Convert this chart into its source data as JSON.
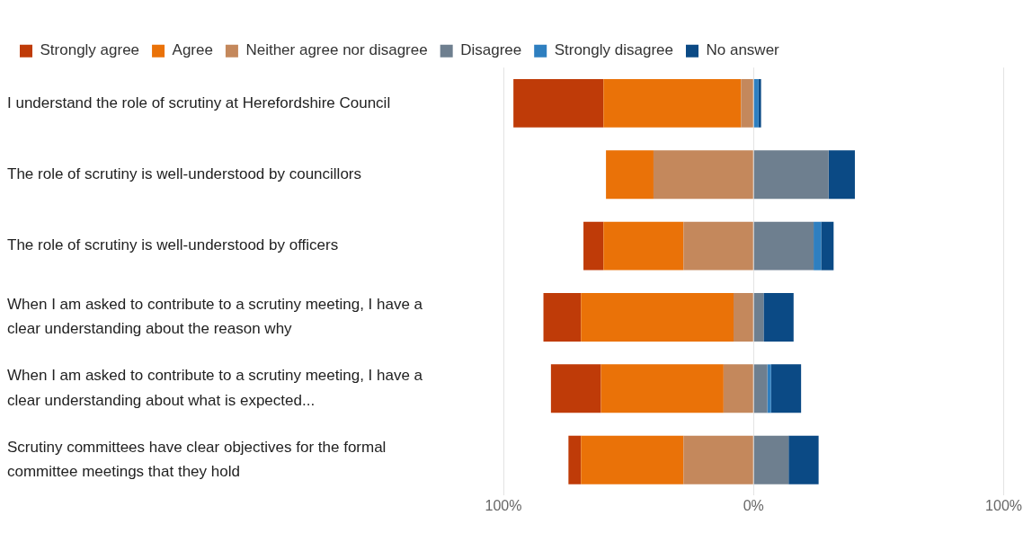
{
  "chart_data": {
    "type": "bar",
    "orientation": "horizontal",
    "stacked": true,
    "categories": [
      "I understand the role of scrutiny at Herefordshire Council",
      "The role of scrutiny is well-understood by councillors",
      "The role of scrutiny is well-understood by officers",
      "When I am asked to contribute to a scrutiny meeting, I have a clear understanding about the reason why",
      "When I am asked to contribute to a scrutiny meeting, I have a clear understanding about what is expected...",
      "Scrutiny committees have clear objectives for the formal committee meetings that they hold"
    ],
    "series": [
      {
        "name": "Strongly agree",
        "color": "#bf3b08",
        "values": [
          -36,
          0,
          -8,
          -15,
          -20,
          -5
        ]
      },
      {
        "name": "Agree",
        "color": "#ea7208",
        "values": [
          -55,
          -19,
          -32,
          -61,
          -49,
          -41
        ]
      },
      {
        "name": "Neither agree nor disagree",
        "color": "#c4885c",
        "values": [
          -5,
          -40,
          -28,
          -8,
          -12,
          -28
        ]
      },
      {
        "name": "Disagree",
        "color": "#6e7f8f",
        "values": [
          0,
          30,
          24,
          4,
          5.5,
          14
        ]
      },
      {
        "name": "Strongly disagree",
        "color": "#2e7fc0",
        "values": [
          2,
          0,
          3,
          0,
          1.5,
          0
        ]
      },
      {
        "name": "No answer",
        "color": "#0b4a85",
        "values": [
          1,
          10.5,
          5,
          12,
          12,
          12
        ]
      }
    ],
    "xlim": [
      -100,
      100
    ],
    "xticks": [
      {
        "value": -100,
        "label": "100%"
      },
      {
        "value": 0,
        "label": "0%"
      },
      {
        "value": 100,
        "label": "100%"
      }
    ],
    "grid": "x",
    "legend": "top left"
  }
}
